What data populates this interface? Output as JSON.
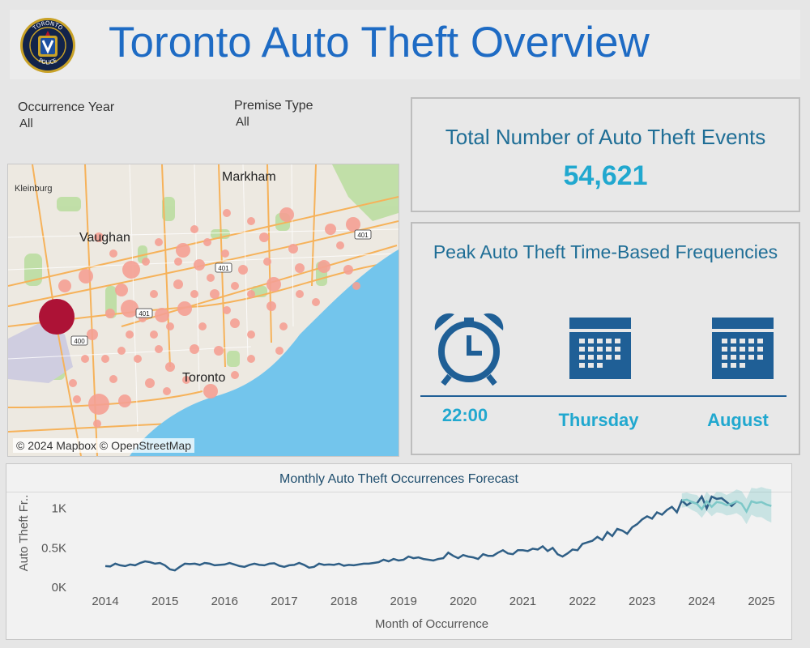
{
  "header": {
    "title": "Toronto Auto Theft Overview",
    "logo": {
      "top_text": "TORONTO",
      "bottom_text": "POLICE"
    }
  },
  "filters": [
    {
      "label": "Occurrence Year",
      "value": "All"
    },
    {
      "label": "Premise Type",
      "value": "All"
    }
  ],
  "map": {
    "attribution": "© 2024 Mapbox © OpenStreetMap",
    "place_labels": [
      "Markham",
      "Kleinburg",
      "Vaughan",
      "Toronto"
    ],
    "highway_labels": [
      "401",
      "401",
      "401",
      "400"
    ],
    "bubble_colors": {
      "low": "#f4a093",
      "high": "#ad1236"
    }
  },
  "kpi": {
    "title": "Total Number of Auto Theft Events",
    "value": "54,621"
  },
  "peak": {
    "title": "Peak Auto Theft Time-Based Frequencies",
    "items": [
      {
        "icon": "alarm-clock-icon",
        "value": "22:00"
      },
      {
        "icon": "calendar-icon",
        "value": "Thursday"
      },
      {
        "icon": "calendar-icon",
        "value": "August"
      }
    ]
  },
  "colors": {
    "accent": "#21a8cf",
    "title_blue": "#1e6bc4",
    "panel_title": "#1f6e96",
    "line": "#2f5f86",
    "forecast": "#7ec8c8"
  },
  "chart_data": {
    "type": "line",
    "title": "Monthly Auto Theft Occurrences Forecast",
    "xlabel": "Month of Occurrence",
    "ylabel": "Auto Theft Fr..",
    "x_ticks": [
      "2014",
      "2015",
      "2016",
      "2017",
      "2018",
      "2019",
      "2020",
      "2021",
      "2022",
      "2023",
      "2024",
      "2025"
    ],
    "y_ticks": [
      {
        "value": 0,
        "label": "0K"
      },
      {
        "value": 500,
        "label": "0.5K"
      },
      {
        "value": 1000,
        "label": "1K"
      }
    ],
    "ylim": [
      -80,
      1150
    ],
    "xlim": [
      "2014-01",
      "2025-01"
    ],
    "series": [
      {
        "start": "2014-01",
        "values": [
          270,
          265,
          300,
          280,
          270,
          290,
          280,
          310,
          330,
          320,
          300,
          310,
          280,
          230,
          215,
          260,
          300,
          295,
          300,
          285,
          310,
          300,
          280,
          285,
          290,
          310,
          290,
          270,
          260,
          285,
          300,
          285,
          280,
          300,
          305,
          275,
          260,
          280,
          285,
          310,
          285,
          250,
          260,
          300,
          285,
          290,
          285,
          300,
          275,
          285,
          280,
          290,
          300,
          300,
          310,
          320,
          350,
          330,
          360,
          340,
          350,
          390,
          370,
          380,
          360,
          350,
          340,
          360,
          370,
          440,
          400,
          370,
          410,
          390,
          380,
          360,
          420,
          400,
          400,
          440,
          470,
          430,
          420,
          470,
          470,
          460,
          490,
          480,
          520,
          460,
          500,
          420,
          390,
          430,
          480,
          470,
          550,
          570,
          590,
          640,
          600,
          700,
          650,
          740,
          720,
          680,
          760,
          800,
          860,
          900,
          870,
          950,
          920,
          980,
          1020,
          950,
          1100,
          1040,
          1080,
          1060,
          1150,
          1000,
          1150,
          1120,
          1130,
          1080,
          1030,
          1090
        ]
      },
      {
        "name": "Forecast",
        "start": "2023-09",
        "values": [
          1100,
          1110,
          1080,
          1060,
          990,
          1090,
          1020,
          1080,
          1070,
          1040,
          1060,
          1090,
          1060,
          960,
          1090,
          1070,
          1080,
          1050,
          1030
        ],
        "band": [
          [
            1010,
            1190
          ],
          [
            1020,
            1200
          ],
          [
            980,
            1180
          ],
          [
            950,
            1170
          ],
          [
            880,
            1100
          ],
          [
            970,
            1210
          ],
          [
            900,
            1140
          ],
          [
            950,
            1210
          ],
          [
            940,
            1200
          ],
          [
            910,
            1170
          ],
          [
            920,
            1200
          ],
          [
            940,
            1240
          ],
          [
            900,
            1220
          ],
          [
            800,
            1120
          ],
          [
            920,
            1260
          ],
          [
            890,
            1250
          ],
          [
            890,
            1270
          ],
          [
            850,
            1250
          ],
          [
            820,
            1240
          ]
        ]
      }
    ]
  }
}
